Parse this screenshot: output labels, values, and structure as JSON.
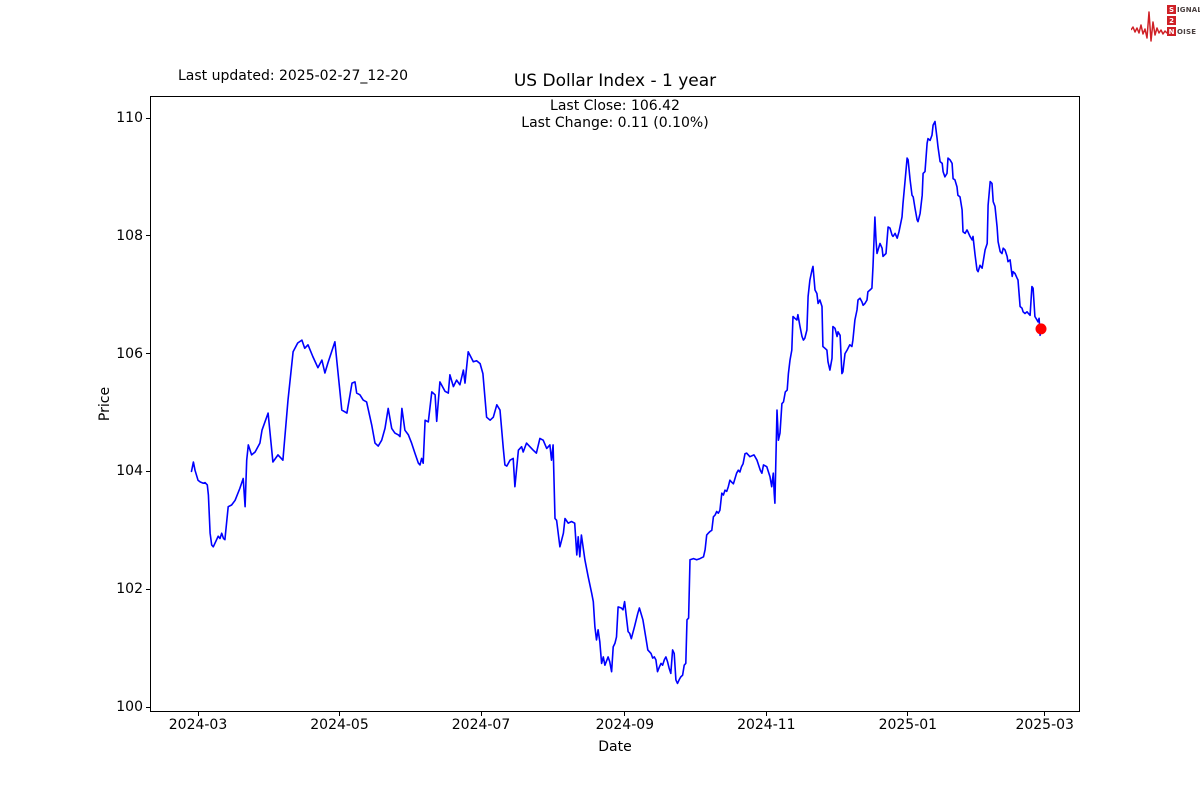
{
  "header": {
    "last_updated": "Last updated: 2025-02-27_12-20"
  },
  "logo": {
    "rows": [
      {
        "boxed": "S",
        "rest": "IGNAL"
      },
      {
        "boxed": "2",
        "rest": ""
      },
      {
        "boxed": "N",
        "rest": "OISE"
      }
    ],
    "accent_color": "#cf2026"
  },
  "chart_data": {
    "type": "line",
    "title": "US Dollar Index - 1 year",
    "annotation": {
      "line1": "Last Close: 106.42",
      "line2": "Last Change: 0.11 (0.10%)"
    },
    "xlabel": "Date",
    "ylabel": "Price",
    "last_close": 106.42,
    "last_change": "0.11 (0.10%)",
    "line_color": "#0000ff",
    "marker_color": "#ff0000",
    "grid": false,
    "legend": "none",
    "x_unit": "days since 2024-03-01",
    "x_ticks": [
      {
        "label": "2024-03",
        "day": 0
      },
      {
        "label": "2024-05",
        "day": 61
      },
      {
        "label": "2024-07",
        "day": 122
      },
      {
        "label": "2024-09",
        "day": 184
      },
      {
        "label": "2024-11",
        "day": 245
      },
      {
        "label": "2025-01",
        "day": 306
      },
      {
        "label": "2025-03",
        "day": 365
      }
    ],
    "y_ticks": [
      100,
      102,
      104,
      106,
      108,
      110
    ],
    "ylim": [
      99.9,
      110.4
    ],
    "points": [
      [
        -2.8,
        104.0
      ],
      [
        -2,
        104.16
      ],
      [
        -1.3,
        104.02
      ],
      [
        0,
        103.85
      ],
      [
        1,
        103.82
      ],
      [
        2.3,
        103.8
      ],
      [
        3,
        103.81
      ],
      [
        4,
        103.77
      ],
      [
        4.5,
        103.6
      ],
      [
        5.2,
        102.95
      ],
      [
        5.9,
        102.75
      ],
      [
        6.6,
        102.72
      ],
      [
        8,
        102.84
      ],
      [
        8.7,
        102.9
      ],
      [
        9.5,
        102.86
      ],
      [
        10.2,
        102.95
      ],
      [
        11,
        102.86
      ],
      [
        11.6,
        102.84
      ],
      [
        13,
        103.4
      ],
      [
        14.5,
        103.43
      ],
      [
        16,
        103.51
      ],
      [
        18,
        103.71
      ],
      [
        19.5,
        103.88
      ],
      [
        20.3,
        103.4
      ],
      [
        21,
        104.19
      ],
      [
        21.7,
        104.45
      ],
      [
        23.1,
        104.28
      ],
      [
        24.6,
        104.33
      ],
      [
        26.7,
        104.48
      ],
      [
        27.6,
        104.7
      ],
      [
        30.2,
        104.99
      ],
      [
        32.3,
        104.16
      ],
      [
        34.5,
        104.28
      ],
      [
        36.6,
        104.19
      ],
      [
        38.8,
        105.21
      ],
      [
        41,
        106.03
      ],
      [
        43,
        106.18
      ],
      [
        44.8,
        106.23
      ],
      [
        46,
        106.09
      ],
      [
        47.4,
        106.15
      ],
      [
        49.5,
        105.95
      ],
      [
        51.7,
        105.76
      ],
      [
        53.4,
        105.89
      ],
      [
        54.7,
        105.67
      ],
      [
        56,
        105.84
      ],
      [
        59,
        106.2
      ],
      [
        62,
        105.04
      ],
      [
        64.2,
        104.99
      ],
      [
        66.4,
        105.5
      ],
      [
        67.7,
        105.52
      ],
      [
        68.4,
        105.33
      ],
      [
        69.8,
        105.3
      ],
      [
        71.2,
        105.21
      ],
      [
        72.7,
        105.18
      ],
      [
        74.9,
        104.79
      ],
      [
        76.3,
        104.48
      ],
      [
        77.7,
        104.43
      ],
      [
        79.2,
        104.53
      ],
      [
        80.6,
        104.73
      ],
      [
        82,
        105.07
      ],
      [
        83.5,
        104.73
      ],
      [
        84.9,
        104.65
      ],
      [
        86.4,
        104.62
      ],
      [
        87.1,
        104.59
      ],
      [
        87.9,
        105.07
      ],
      [
        89.2,
        104.7
      ],
      [
        90.7,
        104.62
      ],
      [
        92.1,
        104.48
      ],
      [
        93.5,
        104.31
      ],
      [
        95,
        104.14
      ],
      [
        95.7,
        104.11
      ],
      [
        96.4,
        104.22
      ],
      [
        97.1,
        104.14
      ],
      [
        97.9,
        104.87
      ],
      [
        99.3,
        104.84
      ],
      [
        100.8,
        105.35
      ],
      [
        102.2,
        105.3
      ],
      [
        102.9,
        104.85
      ],
      [
        104.3,
        105.52
      ],
      [
        106.5,
        105.36
      ],
      [
        107.9,
        105.33
      ],
      [
        108.6,
        105.64
      ],
      [
        110.1,
        105.44
      ],
      [
        111.5,
        105.55
      ],
      [
        112.9,
        105.47
      ],
      [
        114.4,
        105.72
      ],
      [
        115.1,
        105.5
      ],
      [
        116.5,
        106.03
      ],
      [
        118.7,
        105.86
      ],
      [
        120.1,
        105.88
      ],
      [
        121.6,
        105.83
      ],
      [
        122.8,
        105.66
      ],
      [
        124.4,
        104.92
      ],
      [
        125.9,
        104.87
      ],
      [
        127.3,
        104.92
      ],
      [
        128.8,
        105.13
      ],
      [
        130.2,
        105.04
      ],
      [
        131.6,
        104.39
      ],
      [
        132.3,
        104.11
      ],
      [
        133.1,
        104.09
      ],
      [
        134.5,
        104.19
      ],
      [
        135.9,
        104.22
      ],
      [
        136.6,
        103.74
      ],
      [
        138.1,
        104.36
      ],
      [
        139.5,
        104.42
      ],
      [
        140.2,
        104.33
      ],
      [
        141.6,
        104.48
      ],
      [
        143.1,
        104.42
      ],
      [
        144.5,
        104.36
      ],
      [
        145.9,
        104.31
      ],
      [
        147.4,
        104.56
      ],
      [
        148.8,
        104.53
      ],
      [
        150.3,
        104.39
      ],
      [
        151.7,
        104.45
      ],
      [
        152.4,
        104.19
      ],
      [
        153.1,
        104.45
      ],
      [
        153.9,
        103.2
      ],
      [
        154.6,
        103.17
      ],
      [
        156,
        102.72
      ],
      [
        157.5,
        102.95
      ],
      [
        158.2,
        103.2
      ],
      [
        159.6,
        103.12
      ],
      [
        161,
        103.15
      ],
      [
        162.4,
        103.12
      ],
      [
        163.3,
        102.58
      ],
      [
        163.9,
        102.89
      ],
      [
        164.6,
        102.55
      ],
      [
        165.3,
        102.92
      ],
      [
        166.8,
        102.5
      ],
      [
        168.2,
        102.21
      ],
      [
        169.7,
        101.93
      ],
      [
        170.4,
        101.79
      ],
      [
        171.1,
        101.36
      ],
      [
        171.8,
        101.14
      ],
      [
        172.5,
        101.31
      ],
      [
        173.2,
        101.11
      ],
      [
        174,
        100.74
      ],
      [
        174.7,
        100.85
      ],
      [
        175.4,
        100.71
      ],
      [
        176.8,
        100.85
      ],
      [
        177.5,
        100.77
      ],
      [
        178.3,
        100.6
      ],
      [
        179,
        101.02
      ],
      [
        179.7,
        101.08
      ],
      [
        180.4,
        101.19
      ],
      [
        181.1,
        101.7
      ],
      [
        182.5,
        101.68
      ],
      [
        183.2,
        101.65
      ],
      [
        183.9,
        101.79
      ],
      [
        185.4,
        101.28
      ],
      [
        186.1,
        101.25
      ],
      [
        186.8,
        101.16
      ],
      [
        188.2,
        101.37
      ],
      [
        188.9,
        101.48
      ],
      [
        189.6,
        101.59
      ],
      [
        190.3,
        101.68
      ],
      [
        191.8,
        101.48
      ],
      [
        193.2,
        101.14
      ],
      [
        193.9,
        100.97
      ],
      [
        195.3,
        100.91
      ],
      [
        196,
        100.83
      ],
      [
        196.7,
        100.85
      ],
      [
        197.4,
        100.8
      ],
      [
        198.1,
        100.6
      ],
      [
        198.9,
        100.68
      ],
      [
        199.6,
        100.74
      ],
      [
        200.3,
        100.71
      ],
      [
        201,
        100.8
      ],
      [
        201.7,
        100.85
      ],
      [
        202.4,
        100.77
      ],
      [
        203.1,
        100.66
      ],
      [
        203.8,
        100.57
      ],
      [
        204.6,
        100.97
      ],
      [
        205.3,
        100.91
      ],
      [
        206,
        100.46
      ],
      [
        206.7,
        100.4
      ],
      [
        207.4,
        100.46
      ],
      [
        208.1,
        100.51
      ],
      [
        208.9,
        100.54
      ],
      [
        209.6,
        100.71
      ],
      [
        210.3,
        100.74
      ],
      [
        210.8,
        101.48
      ],
      [
        211.5,
        101.51
      ],
      [
        212.1,
        102.5
      ],
      [
        213.6,
        102.52
      ],
      [
        215,
        102.5
      ],
      [
        216.4,
        102.52
      ],
      [
        217.9,
        102.55
      ],
      [
        218.6,
        102.67
      ],
      [
        219.3,
        102.92
      ],
      [
        220,
        102.95
      ],
      [
        220.7,
        102.98
      ],
      [
        221.5,
        103.0
      ],
      [
        222.2,
        103.23
      ],
      [
        222.9,
        103.26
      ],
      [
        223.6,
        103.32
      ],
      [
        224.3,
        103.29
      ],
      [
        225,
        103.34
      ],
      [
        225.8,
        103.63
      ],
      [
        226.5,
        103.6
      ],
      [
        227.2,
        103.68
      ],
      [
        227.9,
        103.66
      ],
      [
        228.6,
        103.74
      ],
      [
        229.3,
        103.85
      ],
      [
        230,
        103.82
      ],
      [
        230.8,
        103.79
      ],
      [
        231.5,
        103.88
      ],
      [
        232.2,
        103.97
      ],
      [
        232.9,
        104.02
      ],
      [
        233.6,
        103.99
      ],
      [
        234.3,
        104.08
      ],
      [
        235,
        104.13
      ],
      [
        235.8,
        104.3
      ],
      [
        236.5,
        104.31
      ],
      [
        237.9,
        104.25
      ],
      [
        239.7,
        104.28
      ],
      [
        241,
        104.19
      ],
      [
        242.4,
        104.02
      ],
      [
        243.1,
        103.97
      ],
      [
        243.8,
        104.11
      ],
      [
        245.2,
        104.08
      ],
      [
        246.6,
        103.91
      ],
      [
        247.3,
        103.74
      ],
      [
        248,
        103.97
      ],
      [
        248.4,
        103.63
      ],
      [
        248.7,
        103.46
      ],
      [
        249.6,
        105.04
      ],
      [
        250.2,
        104.53
      ],
      [
        250.9,
        104.65
      ],
      [
        251.7,
        105.15
      ],
      [
        252.4,
        105.18
      ],
      [
        253.2,
        105.35
      ],
      [
        254,
        105.38
      ],
      [
        254.5,
        105.66
      ],
      [
        255.2,
        105.89
      ],
      [
        256,
        106.06
      ],
      [
        256.5,
        106.63
      ],
      [
        257.3,
        106.6
      ],
      [
        258.2,
        106.57
      ],
      [
        258.6,
        106.66
      ],
      [
        259.5,
        106.46
      ],
      [
        260.4,
        106.29
      ],
      [
        261,
        106.23
      ],
      [
        261.6,
        106.26
      ],
      [
        262.5,
        106.4
      ],
      [
        263,
        106.97
      ],
      [
        263.8,
        107.25
      ],
      [
        264.7,
        107.42
      ],
      [
        265.1,
        107.48
      ],
      [
        266,
        107.08
      ],
      [
        266.8,
        107.02
      ],
      [
        267.3,
        106.85
      ],
      [
        268.1,
        106.91
      ],
      [
        269,
        106.8
      ],
      [
        269.4,
        106.12
      ],
      [
        270.3,
        106.09
      ],
      [
        271.1,
        106.06
      ],
      [
        271.6,
        105.86
      ],
      [
        272.4,
        105.72
      ],
      [
        273.3,
        105.92
      ],
      [
        273.7,
        106.46
      ],
      [
        274.6,
        106.43
      ],
      [
        275.5,
        106.29
      ],
      [
        275.9,
        106.37
      ],
      [
        276.8,
        106.31
      ],
      [
        277.6,
        105.66
      ],
      [
        278,
        105.69
      ],
      [
        278.9,
        106.0
      ],
      [
        279.8,
        106.06
      ],
      [
        280.2,
        106.09
      ],
      [
        281,
        106.15
      ],
      [
        281.9,
        106.12
      ],
      [
        282.3,
        106.23
      ],
      [
        283.2,
        106.57
      ],
      [
        284.1,
        106.74
      ],
      [
        284.5,
        106.91
      ],
      [
        285.4,
        106.94
      ],
      [
        286.2,
        106.88
      ],
      [
        286.7,
        106.82
      ],
      [
        287.5,
        106.85
      ],
      [
        288.4,
        106.91
      ],
      [
        288.8,
        107.05
      ],
      [
        289.7,
        107.08
      ],
      [
        290.5,
        107.11
      ],
      [
        291,
        107.48
      ],
      [
        291.8,
        108.32
      ],
      [
        292.3,
        107.93
      ],
      [
        292.7,
        107.7
      ],
      [
        294,
        107.87
      ],
      [
        294.9,
        107.79
      ],
      [
        295.3,
        107.65
      ],
      [
        296.6,
        107.7
      ],
      [
        297.5,
        108.15
      ],
      [
        298.3,
        108.13
      ],
      [
        299.2,
        108.01
      ],
      [
        299.6,
        107.99
      ],
      [
        300.5,
        108.04
      ],
      [
        301.4,
        107.96
      ],
      [
        302.2,
        108.07
      ],
      [
        303.5,
        108.32
      ],
      [
        303.9,
        108.55
      ],
      [
        304.8,
        108.92
      ],
      [
        305.7,
        109.32
      ],
      [
        306.1,
        109.29
      ],
      [
        307,
        108.95
      ],
      [
        307.8,
        108.69
      ],
      [
        308.3,
        108.66
      ],
      [
        309.1,
        108.47
      ],
      [
        310,
        108.27
      ],
      [
        310.4,
        108.24
      ],
      [
        311.3,
        108.38
      ],
      [
        312.2,
        108.69
      ],
      [
        312.6,
        109.06
      ],
      [
        313.4,
        109.09
      ],
      [
        314.3,
        109.57
      ],
      [
        314.7,
        109.65
      ],
      [
        315.6,
        109.62
      ],
      [
        316.4,
        109.71
      ],
      [
        316.9,
        109.88
      ],
      [
        317.7,
        109.94
      ],
      [
        318.6,
        109.65
      ],
      [
        319,
        109.51
      ],
      [
        319.9,
        109.26
      ],
      [
        320.8,
        109.23
      ],
      [
        321.2,
        109.09
      ],
      [
        322,
        109.0
      ],
      [
        322.9,
        109.06
      ],
      [
        323.3,
        109.32
      ],
      [
        324.2,
        109.29
      ],
      [
        325.1,
        109.23
      ],
      [
        325.5,
        108.97
      ],
      [
        326.3,
        108.95
      ],
      [
        327.2,
        108.83
      ],
      [
        327.6,
        108.69
      ],
      [
        328.5,
        108.66
      ],
      [
        329.4,
        108.44
      ],
      [
        329.8,
        108.07
      ],
      [
        330.7,
        108.04
      ],
      [
        331.5,
        108.1
      ],
      [
        331.9,
        108.07
      ],
      [
        332.8,
        107.99
      ],
      [
        333.7,
        107.93
      ],
      [
        334.1,
        107.99
      ],
      [
        335,
        107.67
      ],
      [
        335.8,
        107.42
      ],
      [
        336.3,
        107.39
      ],
      [
        337.1,
        107.5
      ],
      [
        338,
        107.45
      ],
      [
        339.3,
        107.76
      ],
      [
        340.2,
        107.87
      ],
      [
        340.6,
        108.52
      ],
      [
        341.5,
        108.92
      ],
      [
        342.3,
        108.89
      ],
      [
        342.8,
        108.58
      ],
      [
        343.6,
        108.5
      ],
      [
        344.5,
        108.15
      ],
      [
        344.9,
        107.9
      ],
      [
        345.8,
        107.73
      ],
      [
        346.6,
        107.7
      ],
      [
        347.1,
        107.79
      ],
      [
        347.9,
        107.76
      ],
      [
        348.8,
        107.65
      ],
      [
        349.2,
        107.56
      ],
      [
        350.1,
        107.59
      ],
      [
        351,
        107.31
      ],
      [
        351.4,
        107.39
      ],
      [
        352.2,
        107.36
      ],
      [
        353.1,
        107.28
      ],
      [
        353.5,
        107.25
      ],
      [
        354.4,
        106.8
      ],
      [
        355.2,
        106.77
      ],
      [
        355.7,
        106.71
      ],
      [
        356.5,
        106.68
      ],
      [
        357.4,
        106.71
      ],
      [
        357.8,
        106.69
      ],
      [
        358.7,
        106.65
      ],
      [
        359.5,
        107.14
      ],
      [
        360,
        107.11
      ],
      [
        360.8,
        106.63
      ],
      [
        361.7,
        106.57
      ],
      [
        362.1,
        106.54
      ],
      [
        362.6,
        106.6
      ],
      [
        363,
        106.31
      ],
      [
        363.4,
        106.42
      ]
    ]
  }
}
